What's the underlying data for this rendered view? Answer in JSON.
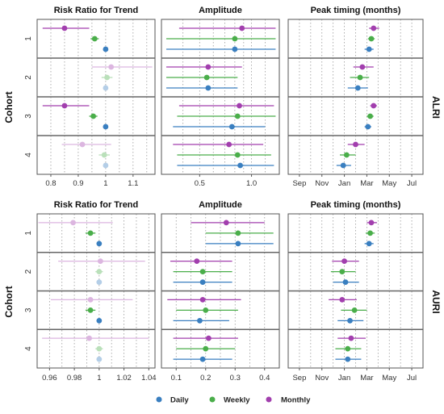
{
  "colors": {
    "Daily": "#3a7fc0",
    "Weekly": "#4aae4a",
    "Monthly": "#a23fae"
  },
  "legend": {
    "items": [
      "Daily",
      "Weekly",
      "Monthly"
    ]
  },
  "y_axis_label": "Cohort",
  "chart_data": [
    {
      "type": "scatter",
      "row": "ALRI",
      "title": "Risk Ratio for Trend",
      "x_ticks": [
        0.8,
        0.9,
        1.0,
        1.1
      ],
      "xlim": [
        0.75,
        1.18
      ],
      "categories": [
        "1",
        "2",
        "3",
        "4"
      ],
      "series": [
        {
          "name": "Daily",
          "points": [
            [
              1.0,
              1.0,
              1.0
            ],
            [
              1.0,
              1.0,
              1.0
            ],
            [
              1.0,
              1.0,
              1.0
            ],
            [
              1.0,
              1.0,
              1.0
            ]
          ],
          "faded": [
            false,
            true,
            false,
            true
          ]
        },
        {
          "name": "Weekly",
          "points": [
            [
              0.96,
              0.945,
              0.975
            ],
            [
              1.005,
              0.985,
              1.025
            ],
            [
              0.955,
              0.94,
              0.97
            ],
            [
              0.995,
              0.975,
              1.015
            ]
          ],
          "faded": [
            false,
            true,
            false,
            true
          ]
        },
        {
          "name": "Monthly",
          "points": [
            [
              0.85,
              0.77,
              0.94
            ],
            [
              1.02,
              0.95,
              1.17
            ],
            [
              0.85,
              0.77,
              0.94
            ],
            [
              0.915,
              0.84,
              1.02
            ]
          ],
          "faded": [
            false,
            true,
            false,
            true
          ]
        }
      ]
    },
    {
      "type": "scatter",
      "row": "ALRI",
      "title": "Amplitude",
      "scale": "log",
      "x_ticks": [
        0.5,
        1.0
      ],
      "xlim": [
        0.3,
        1.45
      ],
      "categories": [
        "1",
        "2",
        "3",
        "4"
      ],
      "series": [
        {
          "name": "Daily",
          "points": [
            [
              0.8,
              0.32,
              1.38
            ],
            [
              0.56,
              0.32,
              0.83
            ],
            [
              0.77,
              0.35,
              1.2
            ],
            [
              0.86,
              0.37,
              1.35
            ]
          ],
          "faded": [
            false,
            false,
            false,
            false
          ]
        },
        {
          "name": "Weekly",
          "points": [
            [
              0.8,
              0.32,
              1.38
            ],
            [
              0.55,
              0.32,
              0.83
            ],
            [
              0.83,
              0.37,
              1.38
            ],
            [
              0.83,
              0.37,
              1.3
            ]
          ],
          "faded": [
            false,
            false,
            false,
            false
          ]
        },
        {
          "name": "Monthly",
          "points": [
            [
              0.88,
              0.38,
              1.38
            ],
            [
              0.56,
              0.32,
              0.88
            ],
            [
              0.85,
              0.38,
              1.35
            ],
            [
              0.74,
              0.35,
              1.17
            ]
          ],
          "faded": [
            false,
            false,
            false,
            false
          ]
        }
      ]
    },
    {
      "type": "scatter",
      "row": "ALRI",
      "title": "Peak timing (months)",
      "x_tick_labels": [
        "Sep",
        "Nov",
        "Jan",
        "Mar",
        "May",
        "Jul"
      ],
      "x_ticks": [
        0,
        2,
        4,
        6,
        8,
        10
      ],
      "xlim": [
        -1.0,
        11.0
      ],
      "categories": [
        "1",
        "2",
        "3",
        "4"
      ],
      "series": [
        {
          "name": "Daily",
          "points": [
            [
              6.2,
              5.8,
              6.6
            ],
            [
              5.2,
              4.3,
              6.1
            ],
            [
              6.1,
              5.8,
              6.4
            ],
            [
              3.9,
              3.3,
              4.6
            ]
          ],
          "faded": [
            false,
            false,
            false,
            false
          ]
        },
        {
          "name": "Weekly",
          "points": [
            [
              6.4,
              6.1,
              6.7
            ],
            [
              5.4,
              4.5,
              6.2
            ],
            [
              6.3,
              6.0,
              6.6
            ],
            [
              4.2,
              3.6,
              5.0
            ]
          ],
          "faded": [
            false,
            false,
            false,
            false
          ]
        },
        {
          "name": "Monthly",
          "points": [
            [
              6.6,
              6.2,
              7.1
            ],
            [
              5.6,
              4.8,
              6.6
            ],
            [
              6.6,
              6.3,
              6.9
            ],
            [
              5.0,
              4.3,
              5.8
            ]
          ],
          "faded": [
            false,
            false,
            false,
            false
          ]
        }
      ]
    },
    {
      "type": "scatter",
      "row": "AURI",
      "title": "Risk Ratio for Trend",
      "x_ticks": [
        0.96,
        0.98,
        1.0,
        1.02,
        1.04
      ],
      "xlim": [
        0.95,
        1.045
      ],
      "categories": [
        "1",
        "2",
        "3",
        "4"
      ],
      "series": [
        {
          "name": "Daily",
          "points": [
            [
              1.0,
              1.0,
              1.0
            ],
            [
              1.0,
              1.0,
              1.0
            ],
            [
              1.0,
              1.0,
              1.0
            ],
            [
              1.0,
              1.0,
              1.0
            ]
          ],
          "faded": [
            false,
            true,
            false,
            true
          ]
        },
        {
          "name": "Weekly",
          "points": [
            [
              0.993,
              0.989,
              0.997
            ],
            [
              1.0,
              0.997,
              1.003
            ],
            [
              0.993,
              0.989,
              0.997
            ],
            [
              1.0,
              0.997,
              1.003
            ]
          ],
          "faded": [
            false,
            true,
            false,
            true
          ]
        },
        {
          "name": "Monthly",
          "points": [
            [
              0.979,
              0.951,
              1.011
            ],
            [
              1.001,
              0.967,
              1.037
            ],
            [
              0.993,
              0.961,
              1.027
            ],
            [
              0.992,
              0.954,
              1.04
            ]
          ],
          "faded": [
            true,
            true,
            true,
            true
          ]
        }
      ]
    },
    {
      "type": "scatter",
      "row": "AURI",
      "title": "Amplitude",
      "x_ticks": [
        0.1,
        0.2,
        0.3,
        0.4
      ],
      "xlim": [
        0.05,
        0.45
      ],
      "categories": [
        "1",
        "2",
        "3",
        "4"
      ],
      "series": [
        {
          "name": "Daily",
          "points": [
            [
              0.31,
              0.2,
              0.43
            ],
            [
              0.19,
              0.09,
              0.29
            ],
            [
              0.18,
              0.09,
              0.28
            ],
            [
              0.19,
              0.09,
              0.29
            ]
          ],
          "faded": [
            false,
            false,
            false,
            false
          ]
        },
        {
          "name": "Weekly",
          "points": [
            [
              0.31,
              0.2,
              0.43
            ],
            [
              0.19,
              0.09,
              0.29
            ],
            [
              0.2,
              0.1,
              0.31
            ],
            [
              0.2,
              0.1,
              0.3
            ]
          ],
          "faded": [
            false,
            false,
            false,
            false
          ]
        },
        {
          "name": "Monthly",
          "points": [
            [
              0.27,
              0.15,
              0.4
            ],
            [
              0.17,
              0.08,
              0.29
            ],
            [
              0.19,
              0.07,
              0.32
            ],
            [
              0.21,
              0.09,
              0.31
            ]
          ],
          "faded": [
            false,
            false,
            false,
            false
          ]
        }
      ]
    },
    {
      "type": "scatter",
      "row": "AURI",
      "title": "Peak timing (months)",
      "x_tick_labels": [
        "Sep",
        "Nov",
        "Jan",
        "Mar",
        "May",
        "Jul"
      ],
      "x_ticks": [
        0,
        2,
        4,
        6,
        8,
        10
      ],
      "xlim": [
        -1.0,
        11.0
      ],
      "categories": [
        "1",
        "2",
        "3",
        "4"
      ],
      "series": [
        {
          "name": "Daily",
          "points": [
            [
              6.2,
              5.8,
              6.6
            ],
            [
              4.1,
              3.0,
              5.3
            ],
            [
              4.5,
              3.4,
              5.7
            ],
            [
              4.3,
              3.2,
              5.5
            ]
          ],
          "faded": [
            false,
            false,
            false,
            false
          ]
        },
        {
          "name": "Weekly",
          "points": [
            [
              6.3,
              5.9,
              6.7
            ],
            [
              3.8,
              2.8,
              5.0
            ],
            [
              4.9,
              3.7,
              6.0
            ],
            [
              4.3,
              3.2,
              5.5
            ]
          ],
          "faded": [
            false,
            false,
            false,
            false
          ]
        },
        {
          "name": "Monthly",
          "points": [
            [
              6.4,
              6.0,
              6.9
            ],
            [
              4.0,
              2.9,
              5.3
            ],
            [
              3.8,
              2.6,
              5.1
            ],
            [
              4.6,
              3.4,
              5.9
            ]
          ],
          "faded": [
            false,
            false,
            false,
            false
          ]
        }
      ]
    }
  ]
}
